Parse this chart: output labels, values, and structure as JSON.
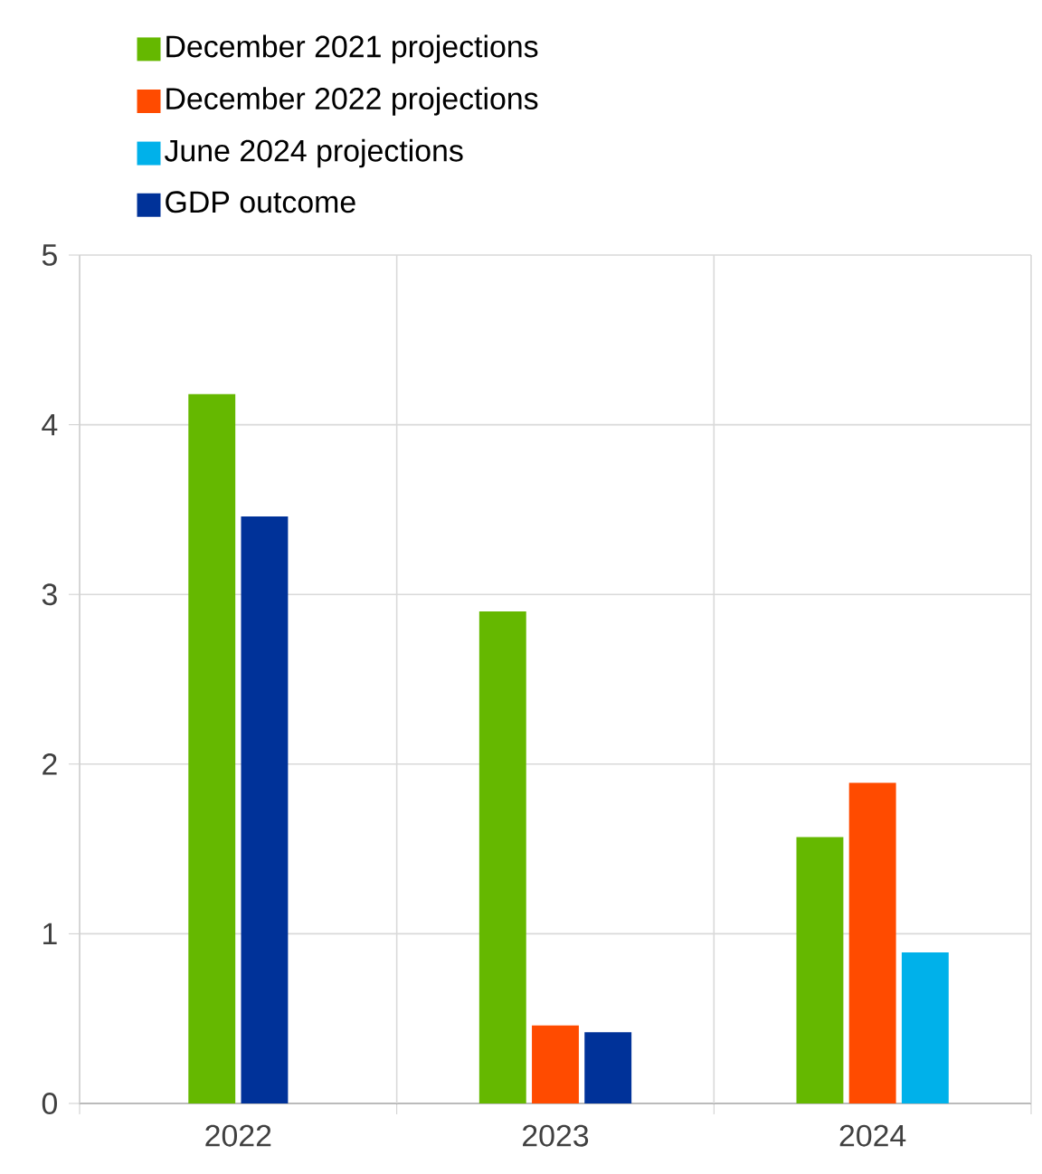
{
  "chart_data": {
    "type": "bar",
    "categories": [
      "2022",
      "2023",
      "2024"
    ],
    "series": [
      {
        "name": "December 2021 projections",
        "color": "#65b800",
        "values": [
          4.18,
          2.9,
          1.57
        ]
      },
      {
        "name": "December 2022 projections",
        "color": "#ff4b00",
        "values": [
          null,
          0.46,
          1.89
        ]
      },
      {
        "name": "June 2024 projections",
        "color": "#00b1ea",
        "values": [
          null,
          null,
          0.89
        ]
      },
      {
        "name": "GDP outcome",
        "color": "#003299",
        "values": [
          3.46,
          0.42,
          null
        ]
      }
    ],
    "ylim": [
      0,
      5
    ],
    "yticks": [
      0,
      1,
      2,
      3,
      4,
      5
    ],
    "grid": true,
    "legend": "top left"
  }
}
